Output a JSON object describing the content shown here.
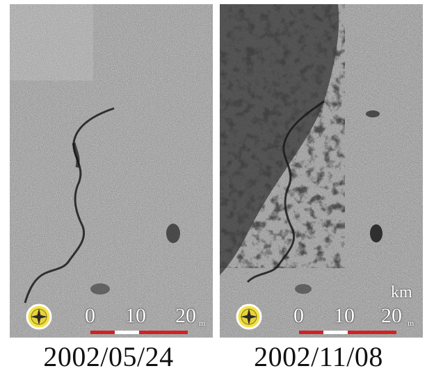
{
  "panels": [
    {
      "date": "2002/05/24",
      "scale_ticks": [
        "0",
        "10",
        "20"
      ],
      "scale_unit_small": "m",
      "scale_unit_km": ""
    },
    {
      "date": "2002/11/08",
      "scale_ticks": [
        "0",
        "10",
        "20"
      ],
      "scale_unit_small": "m",
      "scale_unit_km": "km"
    }
  ],
  "colors": {
    "scale_red": "#d42020",
    "scale_white": "#ffffff",
    "compass_yellow": "#f2e24a"
  }
}
